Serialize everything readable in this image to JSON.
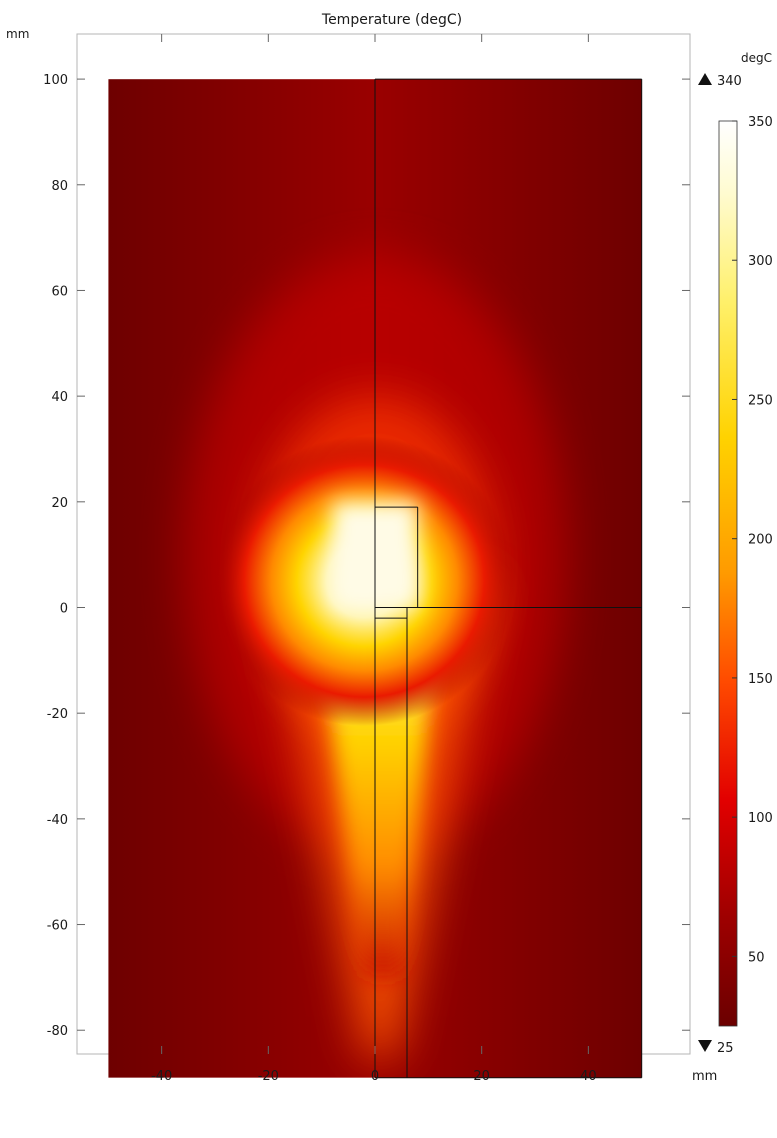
{
  "chart_data": {
    "type": "heatmap",
    "title": "Temperature (degC)",
    "x_unit": "mm",
    "y_unit": "mm",
    "xlim": [
      -56,
      58
    ],
    "ylim": [
      -96,
      108
    ],
    "x_ticks": [
      -40,
      -20,
      0,
      20,
      40
    ],
    "y_ticks": [
      100,
      80,
      60,
      40,
      20,
      0,
      -20,
      -40,
      -60,
      -80
    ],
    "x_tick_labels": [
      "-40",
      "-20",
      "0",
      "20",
      "40"
    ],
    "y_tick_labels": [
      "100",
      "80",
      "60",
      "40",
      "20",
      "0",
      "-20",
      "-40",
      "-60",
      "-80"
    ],
    "domain": {
      "x": [
        -50,
        50
      ],
      "y": [
        -89,
        100
      ]
    },
    "geometry_lines": [
      {
        "x": [
          0,
          0
        ],
        "y": [
          100,
          -89
        ]
      },
      {
        "x": [
          0,
          50
        ],
        "y": [
          100,
          100
        ]
      },
      {
        "x": [
          50,
          50
        ],
        "y": [
          100,
          -89
        ]
      },
      {
        "x": [
          0,
          50
        ],
        "y": [
          -89,
          -89
        ]
      },
      {
        "x": [
          0,
          50
        ],
        "y": [
          0,
          0
        ]
      },
      {
        "x": [
          0,
          8
        ],
        "y": [
          19,
          19
        ]
      },
      {
        "x": [
          8,
          8
        ],
        "y": [
          19,
          0
        ]
      },
      {
        "x": [
          0,
          6
        ],
        "y": [
          -2,
          -2
        ]
      },
      {
        "x": [
          6,
          6
        ],
        "y": [
          0,
          -89
        ]
      }
    ],
    "hot_zone": {
      "peak": {
        "x": -2,
        "y": 5,
        "value": 340
      },
      "head_region": {
        "x": [
          -8,
          8
        ],
        "y": [
          0,
          20
        ]
      },
      "tail_to": {
        "x": 0,
        "y": -89
      }
    },
    "colorbar": {
      "unit": "degC",
      "range": [
        25,
        350
      ],
      "ticks": [
        350,
        300,
        250,
        200,
        150,
        100,
        50
      ],
      "tick_labels": [
        "350",
        "300",
        "250",
        "200",
        "150",
        "100",
        "50"
      ],
      "max_label": "340",
      "min_label": "25",
      "max_marker": "triangle-up",
      "min_marker": "triangle-down",
      "colormap": [
        "#6b0000",
        "#a30000",
        "#e60000",
        "#ff5a00",
        "#ffa000",
        "#ffe000",
        "#fff7a0",
        "#ffffff"
      ]
    },
    "grid": false
  }
}
